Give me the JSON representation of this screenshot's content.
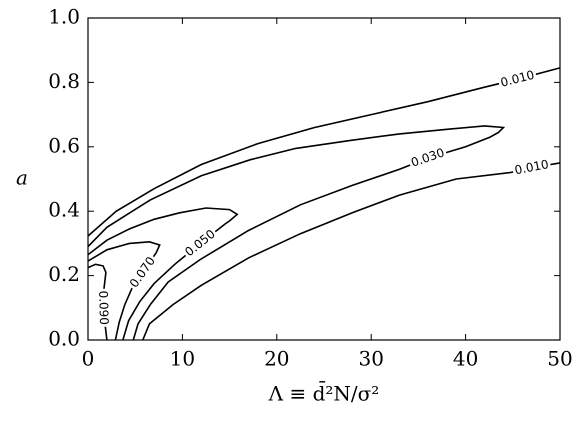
{
  "chart_data": {
    "type": "contour",
    "xlabel": "Λ ≡ d̄²N/σ²",
    "ylabel": "a",
    "xlim": [
      0,
      50
    ],
    "ylim": [
      0,
      1
    ],
    "xticks": [
      0,
      10,
      20,
      30,
      40,
      50
    ],
    "yticks": [
      {
        "value": 0,
        "label": "0.0"
      },
      0.2,
      0.4,
      0.6,
      0.8,
      {
        "value": 1,
        "label": "1.0"
      }
    ],
    "color": "#000000",
    "contours": [
      {
        "level": 0.01,
        "label": "0.010",
        "x": [
          0,
          3,
          7,
          12,
          18,
          24,
          30,
          36,
          42,
          45.5,
          50,
          null,
          5.8,
          6.5,
          9,
          12,
          17,
          22.5,
          28,
          33,
          39,
          44.7,
          47,
          50
        ],
        "y": [
          0.323,
          0.4,
          0.47,
          0.545,
          0.61,
          0.66,
          0.7,
          0.74,
          0.785,
          0.81,
          0.845,
          null,
          0,
          0.05,
          0.11,
          0.17,
          0.255,
          0.33,
          0.395,
          0.45,
          0.5,
          0.52,
          0.535,
          0.55
        ]
      },
      {
        "level": 0.03,
        "label": "0.030",
        "x": [
          0,
          2,
          6.6,
          12,
          17.2,
          22,
          27.8,
          33,
          38.3,
          42,
          44,
          43.5,
          42.6,
          40,
          36,
          33,
          28,
          22.5,
          17,
          11.9,
          8.5,
          6.6,
          5.3,
          4.8
        ],
        "y": [
          0.29,
          0.35,
          0.435,
          0.51,
          0.56,
          0.595,
          0.62,
          0.64,
          0.655,
          0.665,
          0.66,
          0.645,
          0.63,
          0.6,
          0.565,
          0.53,
          0.48,
          0.42,
          0.34,
          0.25,
          0.18,
          0.11,
          0.05,
          0
        ]
      },
      {
        "level": 0.05,
        "label": "0.050",
        "x": [
          0,
          2,
          4.4,
          7,
          9.7,
          12.5,
          15,
          15.8,
          15,
          14.5,
          11.9,
          9.2,
          7,
          5.5,
          4.3,
          3.7
        ],
        "y": [
          0.265,
          0.31,
          0.345,
          0.375,
          0.395,
          0.41,
          0.405,
          0.39,
          0.37,
          0.36,
          0.3,
          0.235,
          0.175,
          0.12,
          0.06,
          0
        ]
      },
      {
        "level": 0.07,
        "label": "0.070",
        "x": [
          0,
          2,
          4.4,
          6.5,
          7.6,
          7.2,
          6.6,
          5.8,
          4.8,
          3.9,
          3.3,
          2.9
        ],
        "y": [
          0.245,
          0.28,
          0.3,
          0.305,
          0.295,
          0.27,
          0.245,
          0.21,
          0.17,
          0.11,
          0.055,
          0
        ]
      },
      {
        "level": 0.09,
        "label": "0.090",
        "x": [
          0,
          0.8,
          1.6,
          1.9,
          1.7,
          1.6,
          1.8,
          2.0
        ],
        "y": [
          0.225,
          0.235,
          0.23,
          0.21,
          0.16,
          0.1,
          0.05,
          0
        ]
      }
    ]
  }
}
